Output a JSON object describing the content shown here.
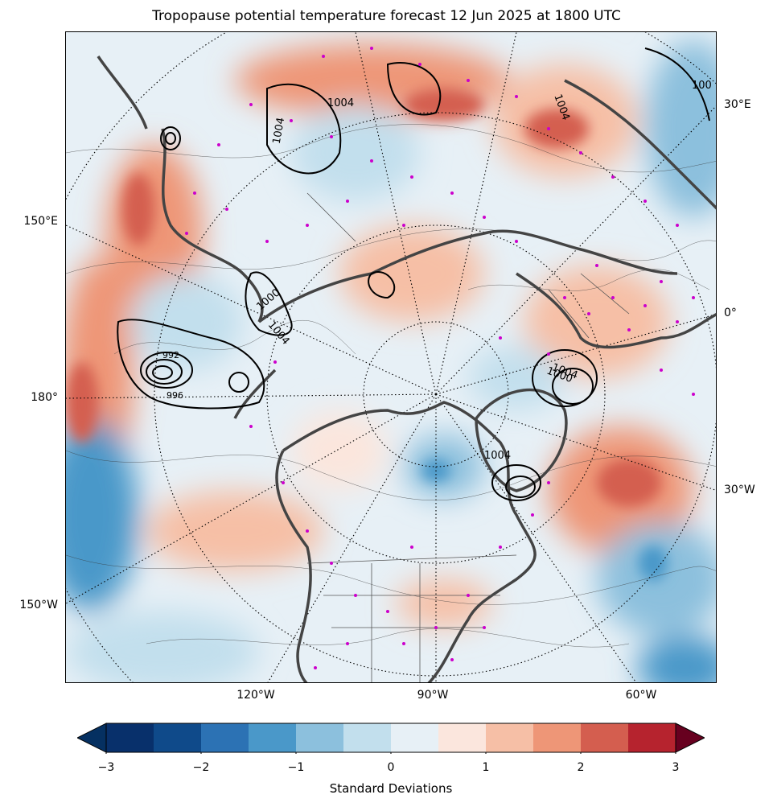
{
  "title": "Tropopause potential temperature forecast 12 Jun 2025 at 1800 UTC",
  "map": {
    "projection": "north-polar-stereographic",
    "longitude_labels": {
      "right_top": "30°E",
      "right_mid": "0°",
      "right_low": "30°W",
      "left_top": "150°E",
      "left_mid": "180°",
      "left_low": "150°W",
      "bottom_1": "120°W",
      "bottom_2": "90°W",
      "bottom_3": "60°W"
    },
    "pressure_contour_labels": [
      "1004",
      "1004",
      "1004",
      "100",
      "1000",
      "1004",
      "1000",
      "1004",
      "992",
      "996",
      "1004"
    ],
    "colors": {
      "coastline": "#444444",
      "station_markers": "#cc00cc",
      "pressure_contours": "#000000",
      "graticule": "#000000"
    }
  },
  "colorbar": {
    "label": "Standard Deviations",
    "ticks": [
      "−3",
      "−2",
      "−1",
      "0",
      "1",
      "2",
      "3"
    ],
    "extend": "both",
    "bins": [
      "#08306b",
      "#0f4a8a",
      "#2c72b4",
      "#4a98c9",
      "#8cc0dd",
      "#c2dfed",
      "#e7f0f6",
      "#fbe6dd",
      "#f6bfa6",
      "#ee9677",
      "#d45e4f",
      "#b6232e",
      "#8a0b25"
    ],
    "extend_colors": {
      "low": "#053061",
      "high": "#67001f"
    }
  }
}
